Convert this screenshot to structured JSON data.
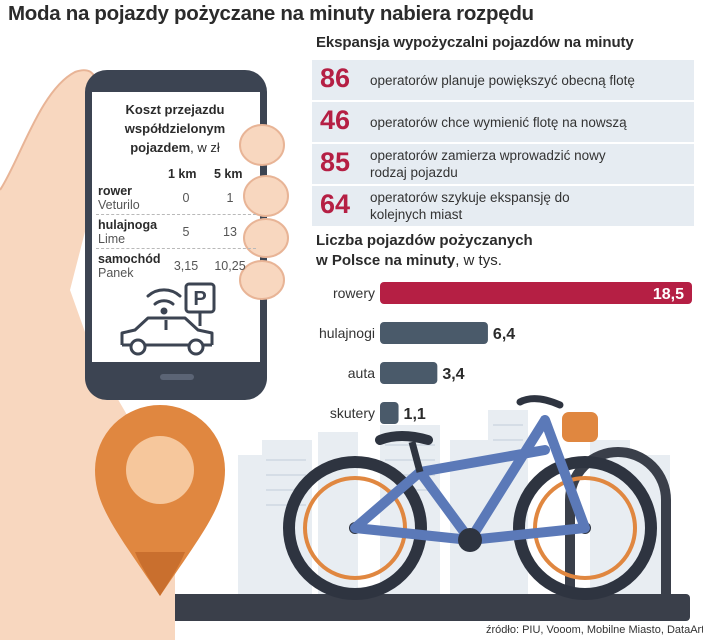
{
  "title": "Moda na pojazdy pożyczane na minuty nabiera rozpędu",
  "phone_table": {
    "title_line1": "Koszt przejazdu",
    "title_line2": "współdzielonym",
    "title_line3": "pojazdem",
    "unit": ", w zł",
    "columns": [
      "1 km",
      "5 km"
    ],
    "rows": [
      {
        "name": "rower",
        "operator": "Veturilo",
        "v1": "0",
        "v5": "1"
      },
      {
        "name": "hulajnoga",
        "operator": "Lime",
        "v1": "5",
        "v5": "13"
      },
      {
        "name": "samochód",
        "operator": "Panek",
        "v1": "3,15",
        "v5": "10,25"
      }
    ],
    "parking_sign": "P"
  },
  "expansion": {
    "title": "Ekspansja wypożyczalni pojazdów na minuty",
    "items": [
      {
        "number": "86",
        "line1": "operatorów planuje powiększyć obecną flotę",
        "line2": ""
      },
      {
        "number": "46",
        "line1": "operatorów chce wymienić flotę na nowszą",
        "line2": ""
      },
      {
        "number": "85",
        "line1": "operatorów zamierza wprowadzić nowy",
        "line2": "rodzaj pojazdu"
      },
      {
        "number": "64",
        "line1": "operatorów szykuje ekspansję do",
        "line2": "kolejnych miast"
      }
    ]
  },
  "chart_data": {
    "type": "bar",
    "orientation": "horizontal",
    "title_line1": "Liczba pojazdów pożyczanych",
    "title_line2": "w Polsce na minuty",
    "unit": ", w tys.",
    "categories": [
      "rowery",
      "hulajnogi",
      "auta",
      "skutery"
    ],
    "values": [
      18.5,
      6.4,
      3.4,
      1.1
    ],
    "value_labels": [
      "18,5",
      "6,4",
      "3,4",
      "1,1"
    ],
    "highlight": 0,
    "xlim": [
      0,
      18.5
    ],
    "colors": {
      "highlight": "#b51f44",
      "normal": "#4a5a6a"
    }
  },
  "source": "źródło: PIU, Vooom, Mobilne Miasto, DataArt"
}
